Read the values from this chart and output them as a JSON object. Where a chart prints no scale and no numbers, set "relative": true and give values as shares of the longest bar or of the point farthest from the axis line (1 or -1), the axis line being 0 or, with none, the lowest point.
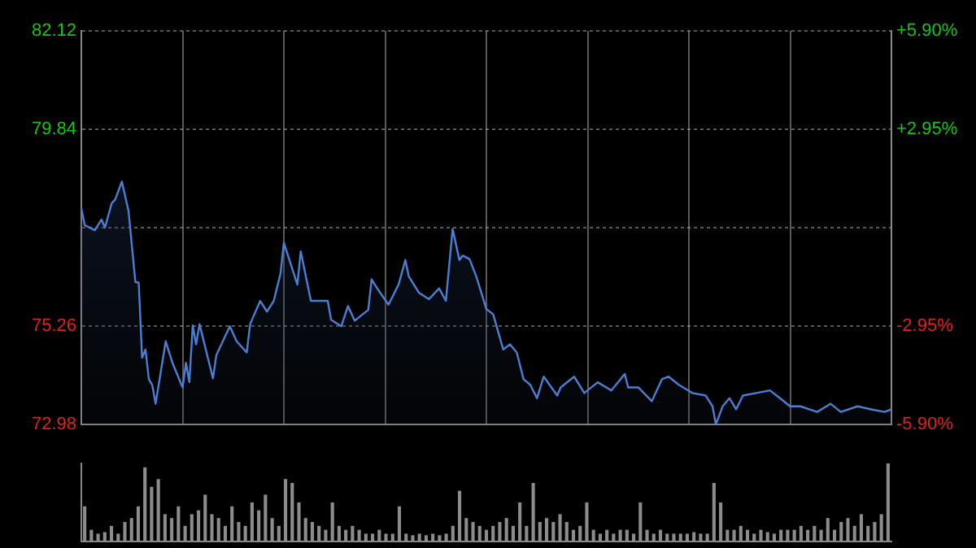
{
  "chart_data": [
    {
      "type": "area",
      "color": "#4a7fd4",
      "ylim": [
        72.98,
        82.12
      ],
      "yticks": [
        72.98,
        75.26,
        {
          "value": 77.55,
          "label": null
        },
        79.84,
        82.12
      ],
      "y2lim": [
        -5.9,
        5.9
      ],
      "y2ticks": [
        {
          "value": -5.9,
          "label": "-5.90%"
        },
        {
          "value": -2.95,
          "label": "-2.95%"
        },
        {
          "value": 0,
          "label": null
        },
        {
          "value": 2.95,
          "label": "+2.95%"
        },
        {
          "value": 5.9,
          "label": "+5.90%"
        }
      ],
      "grid": true,
      "tick_labels": "y",
      "categories": [
        null,
        null,
        null,
        null,
        null,
        null,
        null,
        null,
        null,
        null,
        null,
        null,
        null,
        null,
        null,
        null,
        null,
        null,
        null,
        null,
        null,
        null,
        null,
        null,
        null,
        null,
        null,
        null,
        null,
        null,
        null,
        null,
        null,
        null,
        null,
        null,
        null,
        null,
        null,
        null,
        null,
        null,
        null,
        null,
        null,
        null,
        null,
        null,
        null,
        null,
        null,
        null,
        null,
        null,
        null,
        null,
        null,
        null,
        null,
        null,
        null,
        null,
        null,
        null,
        null,
        null,
        null,
        null,
        null,
        null,
        null,
        null,
        null,
        null,
        null,
        null,
        null,
        null,
        null,
        null,
        null,
        null,
        null,
        null,
        null,
        null,
        null,
        null,
        null,
        null,
        null,
        null,
        null,
        null,
        null,
        null,
        null,
        null,
        null,
        null,
        null,
        null,
        null,
        null,
        null,
        null,
        null,
        null,
        null,
        null,
        null,
        null,
        null,
        null,
        null,
        null,
        null,
        null,
        null,
        null,
        null,
        null,
        null,
        null,
        null,
        null,
        null,
        null,
        null,
        null,
        null,
        null,
        null,
        null,
        null,
        null,
        null,
        null,
        null,
        null,
        null,
        null,
        null,
        null,
        null,
        null,
        null,
        null,
        null,
        null,
        null,
        null,
        null,
        null,
        null,
        null,
        null,
        null,
        null,
        null,
        null,
        null,
        null,
        null,
        null,
        null,
        null,
        null,
        null,
        null,
        null,
        null,
        null,
        null,
        null,
        null,
        null,
        null,
        null,
        null,
        null,
        null,
        null,
        null,
        null,
        null,
        null,
        null,
        null,
        null,
        null,
        null,
        null,
        null,
        null,
        null,
        null,
        null,
        null,
        null,
        null,
        null,
        null,
        null,
        null,
        null,
        null,
        null,
        null,
        null,
        null,
        null,
        null,
        null,
        null,
        null,
        null,
        null,
        null,
        null,
        null,
        null,
        null,
        null,
        null,
        null,
        null,
        null,
        null,
        null,
        null,
        null,
        null,
        null,
        null,
        null,
        null,
        null,
        null,
        null,
        null
      ],
      "values": [
        78.0,
        77.61,
        null,
        null,
        77.49,
        null,
        77.74,
        77.55,
        null,
        78.12,
        78.2,
        null,
        78.62,
        null,
        77.93,
        null,
        76.29,
        76.27,
        74.53,
        74.72,
        74.03,
        73.9,
        73.46,
        null,
        null,
        74.91,
        null,
        74.41,
        null,
        null,
        73.84,
        74.41,
        73.96,
        75.28,
        74.84,
        75.31,
        null,
        null,
        null,
        74.05,
        74.59,
        null,
        null,
        null,
        75.26,
        null,
        74.91,
        null,
        null,
        74.65,
        75.31,
        null,
        null,
        75.85,
        null,
        75.6,
        null,
        75.85,
        null,
        76.48,
        77.2,
        null,
        null,
        null,
        76.23,
        77.0,
        null,
        null,
        75.85,
        null,
        null,
        null,
        null,
        75.85,
        75.41,
        null,
        null,
        75.26,
        null,
        75.73,
        null,
        75.39,
        null,
        null,
        null,
        75.64,
        76.35,
        null,
        76.1,
        null,
        null,
        75.76,
        null,
        null,
        76.23,
        null,
        76.8,
        76.42,
        null,
        null,
        76.04,
        null,
        null,
        75.89,
        null,
        null,
        76.14,
        null,
        75.85,
        null,
        77.52,
        null,
        76.8,
        76.9,
        null,
        76.82,
        null,
        76.42,
        null,
        null,
        75.66,
        null,
        75.54,
        null,
        null,
        74.72,
        null,
        74.84,
        null,
        74.65,
        null,
        74.03,
        null,
        73.9,
        null,
        73.59,
        null,
        74.09,
        null,
        null,
        null,
        73.65,
        73.84,
        null,
        null,
        null,
        74.09,
        null,
        null,
        73.71,
        null,
        null,
        null,
        73.96,
        null,
        null,
        null,
        73.77,
        null,
        null,
        null,
        74.15,
        73.84,
        null,
        null,
        73.84,
        null,
        null,
        null,
        73.52,
        null,
        null,
        74.03,
        null,
        74.09,
        null,
        null,
        73.9,
        null,
        null,
        null,
        73.71,
        null,
        null,
        null,
        73.65,
        null,
        73.4,
        72.98,
        null,
        73.4,
        null,
        73.59,
        null,
        73.33,
        null,
        73.65,
        null,
        null,
        null,
        73.71,
        null,
        null,
        null,
        73.77,
        null,
        null,
        73.59,
        null,
        null,
        73.4,
        null,
        null,
        73.4,
        null,
        null,
        null,
        null,
        73.27,
        null,
        null,
        null,
        73.46,
        null,
        null,
        73.27,
        null,
        null,
        null,
        null,
        73.4,
        null,
        null,
        null,
        73.33,
        null,
        null,
        null,
        73.27,
        null,
        73.33
      ]
    },
    {
      "type": "bar",
      "color": "#8c8c8c",
      "relative": true,
      "categories": [
        null,
        null,
        null,
        null,
        null,
        null,
        null,
        null,
        null,
        null,
        null,
        null,
        null,
        null,
        null,
        null,
        null,
        null,
        null,
        null,
        null,
        null,
        null,
        null,
        null,
        null,
        null,
        null,
        null,
        null,
        null,
        null,
        null,
        null,
        null,
        null,
        null,
        null,
        null,
        null,
        null,
        null,
        null,
        null,
        null,
        null,
        null,
        null,
        null,
        null,
        null,
        null,
        null,
        null,
        null,
        null,
        null,
        null,
        null,
        null,
        null,
        null,
        null,
        null,
        null,
        null,
        null,
        null,
        null,
        null,
        null,
        null,
        null,
        null,
        null,
        null,
        null,
        null,
        null,
        null,
        null,
        null,
        null,
        null,
        null,
        null,
        null,
        null,
        null,
        null,
        null,
        null,
        null,
        null,
        null,
        null,
        null,
        null,
        null,
        null,
        null,
        null,
        null,
        null,
        null,
        null,
        null,
        null,
        null,
        null,
        null,
        null,
        null,
        null,
        null,
        null,
        null,
        null,
        null,
        null,
        null
      ],
      "values": [
        0.45,
        0.15,
        0.1,
        0.12,
        0.2,
        0.1,
        0.25,
        0.3,
        0.45,
        0.95,
        0.7,
        0.8,
        0.35,
        0.3,
        0.45,
        0.2,
        0.35,
        0.4,
        0.6,
        0.35,
        0.3,
        0.2,
        0.45,
        0.25,
        0.2,
        0.5,
        0.4,
        0.6,
        0.3,
        0.2,
        0.8,
        0.75,
        0.5,
        0.3,
        0.25,
        0.2,
        0.15,
        0.5,
        0.2,
        0.15,
        0.2,
        0.15,
        0.1,
        0.1,
        0.15,
        0.1,
        0.1,
        0.45,
        0.1,
        0.08,
        0.1,
        0.08,
        0.1,
        0.08,
        0.1,
        0.2,
        0.65,
        0.3,
        0.25,
        0.2,
        0.15,
        0.2,
        0.25,
        0.3,
        0.2,
        0.5,
        0.2,
        0.75,
        0.25,
        0.3,
        0.25,
        0.35,
        0.25,
        0.15,
        0.2,
        0.5,
        0.15,
        0.1,
        0.15,
        0.1,
        0.15,
        0.15,
        0.1,
        0.5,
        0.15,
        0.1,
        0.15,
        0.1,
        0.1,
        0.1,
        0.1,
        0.12,
        0.1,
        0.1,
        0.75,
        0.5,
        0.15,
        0.15,
        0.2,
        0.15,
        0.1,
        0.15,
        0.12,
        0.1,
        0.15,
        0.15,
        0.15,
        0.2,
        0.15,
        0.2,
        0.15,
        0.3,
        0.15,
        0.25,
        0.3,
        0.2,
        0.35,
        0.2,
        0.25,
        0.35,
        1.0
      ]
    }
  ]
}
